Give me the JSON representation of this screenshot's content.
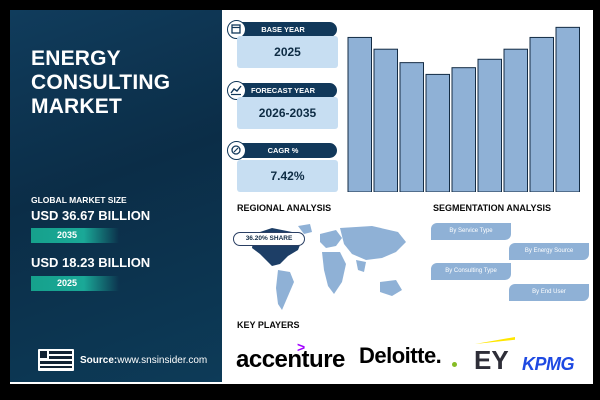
{
  "title_lines": [
    "ENERGY",
    "CONSULTING",
    "MARKET"
  ],
  "global_market_size_label": "GLOBAL MARKET SIZE",
  "values": [
    {
      "amount": "USD 36.67 BILLION",
      "year": "2035"
    },
    {
      "amount": "USD 18.23 BILLION",
      "year": "2025"
    }
  ],
  "source": {
    "label": "Source:",
    "url": "www.snsinsider.com"
  },
  "stats": [
    {
      "label": "BASE YEAR",
      "value": "2025",
      "icon": "calendar-icon"
    },
    {
      "label": "FORECAST YEAR",
      "value": "2026-2035",
      "icon": "chart-icon"
    },
    {
      "label": "CAGR %",
      "value": "7.42%",
      "icon": "growth-icon"
    }
  ],
  "chart_data": {
    "type": "bar",
    "values": [
      92,
      85,
      77,
      70,
      74,
      79,
      85,
      92,
      98
    ],
    "ylim": [
      0,
      100
    ]
  },
  "regional": {
    "heading": "REGIONAL ANALYSIS",
    "share": "36.20% SHARE"
  },
  "segmentation": {
    "heading": "SEGMENTATION ANALYSIS",
    "items": [
      "By Service Type",
      "By Energy Source",
      "By Consulting Type",
      "By End User"
    ]
  },
  "key_players": {
    "heading": "KEY PLAYERS",
    "logos": [
      "accenture",
      "Deloitte.",
      "EY",
      "KPMG"
    ]
  },
  "colors": {
    "panel": "#0e3552",
    "bar": "#8fb1d6",
    "teal": "#16a18c",
    "card": "#c7def2"
  }
}
